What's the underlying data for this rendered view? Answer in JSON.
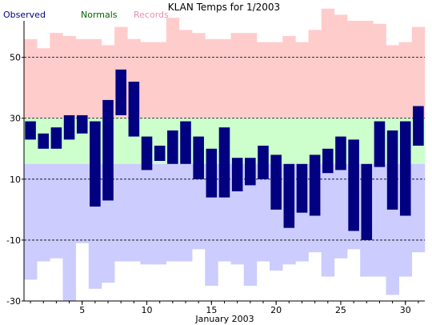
{
  "chart_data": {
    "type": "bar",
    "title": "KLAN Temps for 1/2003",
    "xlabel": "January 2003",
    "ylabel": "",
    "legend": [
      {
        "label": "Observed",
        "color": "#000080"
      },
      {
        "label": "Normals",
        "color": "#006400"
      },
      {
        "label": "Records",
        "color": "#e58fb5"
      }
    ],
    "colors": {
      "observed": "#000080",
      "normals": "#ccffcc",
      "record_high": "#ffcccc",
      "record_low": "#ccccff"
    },
    "ylim": [
      -30,
      62
    ],
    "yticks": [
      -30,
      -10,
      10,
      30,
      50
    ],
    "dashed_gridlines": [
      -10,
      10,
      30,
      50
    ],
    "xlim": [
      0.5,
      31.5
    ],
    "xticks": [
      5,
      10,
      15,
      20,
      25,
      30
    ],
    "days": [
      1,
      2,
      3,
      4,
      5,
      6,
      7,
      8,
      9,
      10,
      11,
      12,
      13,
      14,
      15,
      16,
      17,
      18,
      19,
      20,
      21,
      22,
      23,
      24,
      25,
      26,
      27,
      28,
      29,
      30,
      31
    ],
    "record_high": [
      56,
      53,
      58,
      57,
      56,
      56,
      54,
      60,
      56,
      55,
      55,
      63,
      59,
      58,
      56,
      56,
      58,
      58,
      55,
      55,
      57,
      55,
      59,
      66,
      64,
      62,
      62,
      61,
      54,
      55,
      60
    ],
    "normal_high": [
      30,
      30,
      30,
      30,
      30,
      30,
      30,
      30,
      30,
      30,
      30,
      30,
      30,
      30,
      30,
      30,
      30,
      30,
      30,
      30,
      30,
      30,
      30,
      30,
      30,
      30,
      30,
      30,
      30,
      30,
      30
    ],
    "normal_low": [
      15,
      15,
      15,
      15,
      15,
      15,
      15,
      15,
      15,
      15,
      15,
      15,
      15,
      15,
      15,
      15,
      15,
      15,
      15,
      15,
      15,
      15,
      15,
      15,
      15,
      15,
      15,
      15,
      15,
      15,
      15
    ],
    "record_low": [
      -23,
      -17,
      -16,
      -30,
      -11,
      -26,
      -24,
      -17,
      -17,
      -18,
      -18,
      -17,
      -17,
      -13,
      -25,
      -17,
      -18,
      -25,
      -17,
      -20,
      -18,
      -17,
      -14,
      -22,
      -16,
      -13,
      -22,
      -22,
      -28,
      -22,
      -14
    ],
    "observed_high": [
      29,
      25,
      27,
      31,
      31,
      29,
      36,
      46,
      42,
      24,
      21,
      26,
      29,
      24,
      20,
      27,
      17,
      17,
      21,
      18,
      15,
      15,
      18,
      20,
      24,
      23,
      15,
      29,
      26,
      29,
      34
    ],
    "observed_low": [
      23,
      20,
      20,
      23,
      25,
      1,
      3,
      31,
      24,
      13,
      16,
      15,
      15,
      10,
      4,
      4,
      6,
      8,
      10,
      0,
      -6,
      -1,
      -2,
      12,
      13,
      -7,
      -10,
      14,
      0,
      -2,
      21
    ]
  }
}
